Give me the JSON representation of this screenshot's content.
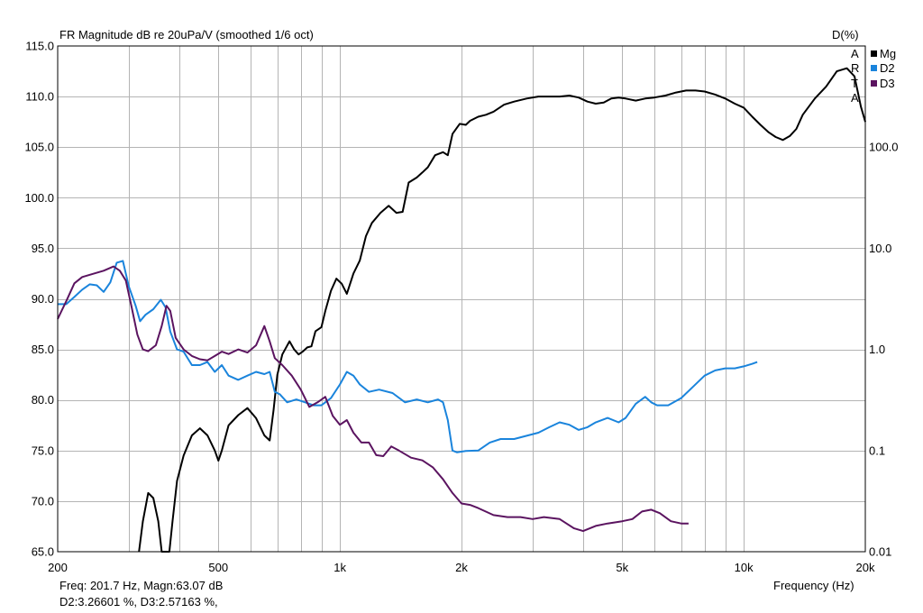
{
  "header": {
    "title": "FR Magnitude dB re 20uPa/V (smoothed 1/6 oct)",
    "right_axis_title": "D(%)"
  },
  "legend": {
    "arta_letters": [
      "A",
      "R",
      "T",
      "A"
    ],
    "items": [
      {
        "label": "Mg",
        "color": "#000000"
      },
      {
        "label": "D2",
        "color": "#1a84dc"
      },
      {
        "label": "D3",
        "color": "#5b1460"
      }
    ]
  },
  "footer": {
    "readout_line1": "Freq: 201.7 Hz, Magn:63.07 dB",
    "readout_line2": "D2:3.26601 %, D3:2.57163 %,",
    "x_axis_label": "Frequency (Hz)"
  },
  "colors": {
    "grid": "#b4b4b4",
    "frame": "#000000",
    "background": "#ffffff"
  },
  "chart_data": {
    "type": "line",
    "title": "FR Magnitude dB re 20uPa/V (smoothed 1/6 oct)",
    "xlabel": "Frequency (Hz)",
    "ylabel_left": "",
    "ylabel_right": "D(%)",
    "x_scale": "log",
    "xlim": [
      200,
      20000
    ],
    "ylim_left": [
      65,
      115
    ],
    "ylim_right": [
      0.01,
      1000
    ],
    "y_right_scale": "log",
    "grid": true,
    "legend_position": "top-right",
    "x_ticks": [
      {
        "value": 200,
        "label": "200"
      },
      {
        "value": 500,
        "label": "500"
      },
      {
        "value": 1000,
        "label": "1k"
      },
      {
        "value": 2000,
        "label": "2k"
      },
      {
        "value": 5000,
        "label": "5k"
      },
      {
        "value": 10000,
        "label": "10k"
      },
      {
        "value": 20000,
        "label": "20k"
      }
    ],
    "y_left_ticks": [
      "115.0",
      "110.0",
      "105.0",
      "100.0",
      "95.0",
      "90.0",
      "85.0",
      "80.0",
      "75.0",
      "70.0",
      "65.0"
    ],
    "y_right_ticks": [
      {
        "value": 100,
        "label": "100.0"
      },
      {
        "value": 10,
        "label": "10.0"
      },
      {
        "value": 1,
        "label": "1.0"
      },
      {
        "value": 0.1,
        "label": "0.1"
      },
      {
        "value": 0.01,
        "label": "0.01"
      }
    ],
    "series": [
      {
        "name": "Mg",
        "axis": "left",
        "color": "#000000",
        "points": [
          [
            318,
            65
          ],
          [
            325,
            68
          ],
          [
            335,
            70.8
          ],
          [
            345,
            70.3
          ],
          [
            355,
            68
          ],
          [
            362,
            65
          ],
          [
            378,
            65
          ],
          [
            385,
            68
          ],
          [
            395,
            72
          ],
          [
            410,
            74.5
          ],
          [
            430,
            76.5
          ],
          [
            450,
            77.2
          ],
          [
            470,
            76.5
          ],
          [
            490,
            75
          ],
          [
            500,
            74
          ],
          [
            510,
            75
          ],
          [
            530,
            77.5
          ],
          [
            560,
            78.5
          ],
          [
            590,
            79.2
          ],
          [
            620,
            78.2
          ],
          [
            650,
            76.5
          ],
          [
            670,
            76
          ],
          [
            685,
            79
          ],
          [
            700,
            82.5
          ],
          [
            720,
            84.5
          ],
          [
            750,
            85.8
          ],
          [
            770,
            85
          ],
          [
            790,
            84.5
          ],
          [
            810,
            84.8
          ],
          [
            830,
            85.2
          ],
          [
            850,
            85.3
          ],
          [
            870,
            86.8
          ],
          [
            900,
            87.2
          ],
          [
            920,
            88.8
          ],
          [
            950,
            90.8
          ],
          [
            980,
            92
          ],
          [
            1010,
            91.5
          ],
          [
            1040,
            90.5
          ],
          [
            1080,
            92.5
          ],
          [
            1120,
            93.8
          ],
          [
            1160,
            96.2
          ],
          [
            1200,
            97.5
          ],
          [
            1260,
            98.5
          ],
          [
            1320,
            99.2
          ],
          [
            1380,
            98.5
          ],
          [
            1430,
            98.6
          ],
          [
            1480,
            101.5
          ],
          [
            1550,
            102
          ],
          [
            1600,
            102.5
          ],
          [
            1650,
            103
          ],
          [
            1720,
            104.2
          ],
          [
            1800,
            104.5
          ],
          [
            1850,
            104.2
          ],
          [
            1900,
            106.3
          ],
          [
            1980,
            107.3
          ],
          [
            2050,
            107.2
          ],
          [
            2100,
            107.6
          ],
          [
            2200,
            108
          ],
          [
            2300,
            108.2
          ],
          [
            2400,
            108.5
          ],
          [
            2550,
            109.2
          ],
          [
            2700,
            109.5
          ],
          [
            2900,
            109.8
          ],
          [
            3100,
            110
          ],
          [
            3300,
            110
          ],
          [
            3500,
            110
          ],
          [
            3700,
            110.1
          ],
          [
            3900,
            109.9
          ],
          [
            4100,
            109.5
          ],
          [
            4300,
            109.3
          ],
          [
            4500,
            109.4
          ],
          [
            4700,
            109.8
          ],
          [
            4900,
            109.9
          ],
          [
            5100,
            109.8
          ],
          [
            5400,
            109.6
          ],
          [
            5700,
            109.8
          ],
          [
            6000,
            109.9
          ],
          [
            6400,
            110.1
          ],
          [
            6800,
            110.4
          ],
          [
            7200,
            110.6
          ],
          [
            7600,
            110.6
          ],
          [
            8000,
            110.5
          ],
          [
            8500,
            110.2
          ],
          [
            9000,
            109.8
          ],
          [
            9500,
            109.3
          ],
          [
            10000,
            108.9
          ],
          [
            10500,
            108
          ],
          [
            11000,
            107.2
          ],
          [
            11500,
            106.5
          ],
          [
            12000,
            106
          ],
          [
            12500,
            105.7
          ],
          [
            13000,
            106.1
          ],
          [
            13500,
            106.8
          ],
          [
            14000,
            108.2
          ],
          [
            15000,
            109.8
          ],
          [
            16000,
            111
          ],
          [
            17000,
            112.5
          ],
          [
            18000,
            112.8
          ],
          [
            18800,
            112
          ],
          [
            19500,
            109
          ],
          [
            20000,
            107.5
          ]
        ]
      },
      {
        "name": "D2",
        "axis": "right",
        "color": "#1a84dc",
        "points": [
          [
            200,
            2.8
          ],
          [
            210,
            2.8
          ],
          [
            220,
            3.3
          ],
          [
            230,
            3.9
          ],
          [
            240,
            4.4
          ],
          [
            250,
            4.3
          ],
          [
            260,
            3.7
          ],
          [
            270,
            4.6
          ],
          [
            280,
            7.2
          ],
          [
            290,
            7.5
          ],
          [
            300,
            4.2
          ],
          [
            312,
            2.7
          ],
          [
            320,
            1.9
          ],
          [
            330,
            2.2
          ],
          [
            345,
            2.5
          ],
          [
            360,
            3.1
          ],
          [
            370,
            2.6
          ],
          [
            380,
            1.5
          ],
          [
            395,
            1.0
          ],
          [
            410,
            0.95
          ],
          [
            430,
            0.7
          ],
          [
            450,
            0.7
          ],
          [
            470,
            0.75
          ],
          [
            490,
            0.6
          ],
          [
            510,
            0.7
          ],
          [
            530,
            0.55
          ],
          [
            560,
            0.5
          ],
          [
            590,
            0.55
          ],
          [
            620,
            0.6
          ],
          [
            650,
            0.57
          ],
          [
            670,
            0.6
          ],
          [
            690,
            0.38
          ],
          [
            710,
            0.36
          ],
          [
            740,
            0.3
          ],
          [
            780,
            0.32
          ],
          [
            820,
            0.3
          ],
          [
            860,
            0.28
          ],
          [
            900,
            0.28
          ],
          [
            950,
            0.33
          ],
          [
            1000,
            0.45
          ],
          [
            1040,
            0.6
          ],
          [
            1080,
            0.55
          ],
          [
            1120,
            0.45
          ],
          [
            1180,
            0.38
          ],
          [
            1250,
            0.4
          ],
          [
            1350,
            0.37
          ],
          [
            1450,
            0.3
          ],
          [
            1550,
            0.32
          ],
          [
            1650,
            0.3
          ],
          [
            1750,
            0.32
          ],
          [
            1800,
            0.3
          ],
          [
            1850,
            0.2
          ],
          [
            1900,
            0.1
          ],
          [
            1950,
            0.096
          ],
          [
            2050,
            0.099
          ],
          [
            2200,
            0.1
          ],
          [
            2350,
            0.12
          ],
          [
            2500,
            0.13
          ],
          [
            2700,
            0.13
          ],
          [
            2900,
            0.14
          ],
          [
            3100,
            0.15
          ],
          [
            3300,
            0.17
          ],
          [
            3500,
            0.19
          ],
          [
            3700,
            0.18
          ],
          [
            3900,
            0.16
          ],
          [
            4100,
            0.17
          ],
          [
            4300,
            0.19
          ],
          [
            4600,
            0.21
          ],
          [
            4900,
            0.19
          ],
          [
            5100,
            0.21
          ],
          [
            5400,
            0.29
          ],
          [
            5700,
            0.34
          ],
          [
            5900,
            0.3
          ],
          [
            6100,
            0.28
          ],
          [
            6500,
            0.28
          ],
          [
            7000,
            0.33
          ],
          [
            7500,
            0.43
          ],
          [
            8000,
            0.55
          ],
          [
            8500,
            0.62
          ],
          [
            9000,
            0.65
          ],
          [
            9500,
            0.65
          ],
          [
            10000,
            0.68
          ],
          [
            10500,
            0.72
          ],
          [
            10800,
            0.75
          ]
        ]
      },
      {
        "name": "D3",
        "axis": "right",
        "color": "#5b1460",
        "points": [
          [
            200,
            2.0
          ],
          [
            210,
            3.0
          ],
          [
            220,
            4.5
          ],
          [
            230,
            5.2
          ],
          [
            245,
            5.6
          ],
          [
            260,
            6.0
          ],
          [
            275,
            6.6
          ],
          [
            285,
            6.0
          ],
          [
            295,
            4.8
          ],
          [
            305,
            2.6
          ],
          [
            315,
            1.4
          ],
          [
            325,
            1.0
          ],
          [
            335,
            0.96
          ],
          [
            350,
            1.1
          ],
          [
            362,
            1.7
          ],
          [
            372,
            2.7
          ],
          [
            380,
            2.4
          ],
          [
            392,
            1.3
          ],
          [
            410,
            1.0
          ],
          [
            430,
            0.86
          ],
          [
            450,
            0.8
          ],
          [
            470,
            0.78
          ],
          [
            490,
            0.86
          ],
          [
            510,
            0.95
          ],
          [
            530,
            0.9
          ],
          [
            560,
            1.0
          ],
          [
            590,
            0.93
          ],
          [
            620,
            1.1
          ],
          [
            650,
            1.7
          ],
          [
            670,
            1.2
          ],
          [
            690,
            0.82
          ],
          [
            720,
            0.7
          ],
          [
            760,
            0.55
          ],
          [
            800,
            0.4
          ],
          [
            840,
            0.27
          ],
          [
            880,
            0.3
          ],
          [
            920,
            0.34
          ],
          [
            960,
            0.22
          ],
          [
            1000,
            0.18
          ],
          [
            1040,
            0.2
          ],
          [
            1080,
            0.15
          ],
          [
            1130,
            0.12
          ],
          [
            1180,
            0.12
          ],
          [
            1230,
            0.09
          ],
          [
            1280,
            0.088
          ],
          [
            1340,
            0.11
          ],
          [
            1400,
            0.1
          ],
          [
            1500,
            0.085
          ],
          [
            1600,
            0.08
          ],
          [
            1700,
            0.068
          ],
          [
            1800,
            0.052
          ],
          [
            1900,
            0.038
          ],
          [
            2000,
            0.03
          ],
          [
            2100,
            0.029
          ],
          [
            2200,
            0.027
          ],
          [
            2400,
            0.023
          ],
          [
            2600,
            0.022
          ],
          [
            2800,
            0.022
          ],
          [
            3000,
            0.021
          ],
          [
            3200,
            0.022
          ],
          [
            3500,
            0.021
          ],
          [
            3800,
            0.017
          ],
          [
            4000,
            0.016
          ],
          [
            4300,
            0.018
          ],
          [
            4600,
            0.019
          ],
          [
            5000,
            0.02
          ],
          [
            5300,
            0.021
          ],
          [
            5600,
            0.025
          ],
          [
            5900,
            0.026
          ],
          [
            6200,
            0.024
          ],
          [
            6600,
            0.02
          ],
          [
            7000,
            0.019
          ],
          [
            7300,
            0.019
          ]
        ]
      }
    ]
  }
}
